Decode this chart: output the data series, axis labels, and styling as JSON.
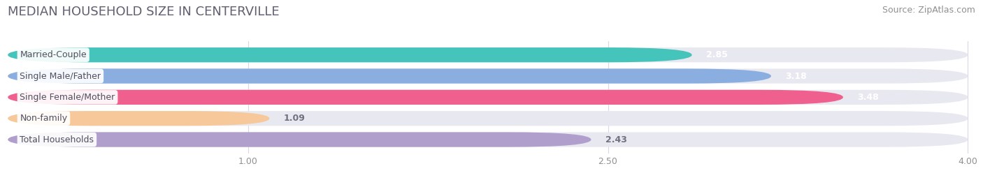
{
  "title": "MEDIAN HOUSEHOLD SIZE IN CENTERVILLE",
  "source": "Source: ZipAtlas.com",
  "categories": [
    "Married-Couple",
    "Single Male/Father",
    "Single Female/Mother",
    "Non-family",
    "Total Households"
  ],
  "values": [
    2.85,
    3.18,
    3.48,
    1.09,
    2.43
  ],
  "bar_colors": [
    "#45c4bc",
    "#8aaee0",
    "#f0608e",
    "#f7c99a",
    "#b09ecc"
  ],
  "bar_bg_color": "#e8e8f0",
  "value_colors_inside": [
    true,
    true,
    true,
    false,
    false
  ],
  "xlim_start": 0.0,
  "xlim_end": 4.0,
  "xticks": [
    1.0,
    2.5,
    4.0
  ],
  "xtick_labels": [
    "1.00",
    "2.50",
    "4.00"
  ],
  "title_fontsize": 13,
  "source_fontsize": 9,
  "label_fontsize": 9,
  "value_fontsize": 9,
  "bg_color": "#ffffff",
  "grid_color": "#d8d8e8",
  "title_color": "#606070",
  "source_color": "#909090",
  "label_text_color": "#505060",
  "value_inside_color": "#ffffff",
  "value_outside_color": "#707080"
}
